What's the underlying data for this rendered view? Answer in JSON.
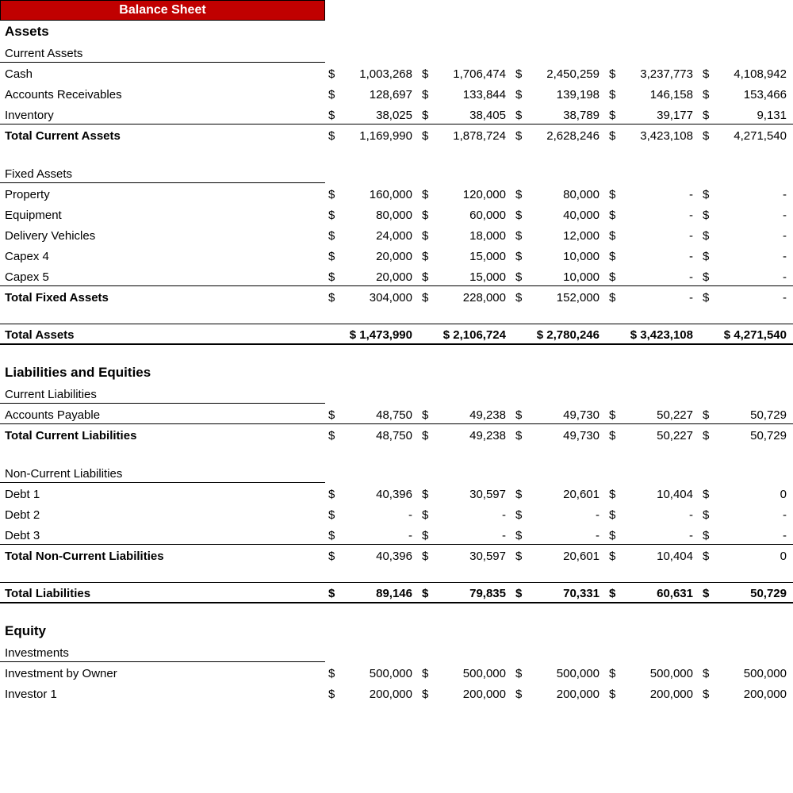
{
  "title": "Balance Sheet",
  "currency_symbol": "$",
  "colors": {
    "title_bg": "#c00000",
    "title_fg": "#ffffff",
    "text": "#000000",
    "bg": "#ffffff",
    "border": "#000000"
  },
  "periods": 5,
  "rows": [
    {
      "type": "section",
      "label": "Assets"
    },
    {
      "type": "subhead",
      "label": "Current Assets",
      "underline": true
    },
    {
      "type": "line",
      "label": "Cash",
      "values": [
        "1,003,268",
        "1,706,474",
        "2,450,259",
        "3,237,773",
        "4,108,942"
      ]
    },
    {
      "type": "line",
      "label": "Accounts Receivables",
      "values": [
        "128,697",
        "133,844",
        "139,198",
        "146,158",
        "153,466"
      ]
    },
    {
      "type": "line",
      "label": "Inventory",
      "values": [
        "38,025",
        "38,405",
        "38,789",
        "39,177",
        "9,131"
      ]
    },
    {
      "type": "total",
      "label": "Total Current Assets",
      "values": [
        "1,169,990",
        "1,878,724",
        "2,628,246",
        "3,423,108",
        "4,271,540"
      ]
    },
    {
      "type": "blank"
    },
    {
      "type": "subhead",
      "label": "Fixed Assets",
      "underline": true
    },
    {
      "type": "line",
      "label": "Property",
      "values": [
        "160,000",
        "120,000",
        "80,000",
        "-",
        "-"
      ]
    },
    {
      "type": "line",
      "label": "Equipment",
      "values": [
        "80,000",
        "60,000",
        "40,000",
        "-",
        "-"
      ]
    },
    {
      "type": "line",
      "label": "Delivery Vehicles",
      "values": [
        "24,000",
        "18,000",
        "12,000",
        "-",
        "-"
      ]
    },
    {
      "type": "line",
      "label": "Capex 4",
      "values": [
        "20,000",
        "15,000",
        "10,000",
        "-",
        "-"
      ]
    },
    {
      "type": "line",
      "label": "Capex 5",
      "values": [
        "20,000",
        "15,000",
        "10,000",
        "-",
        "-"
      ]
    },
    {
      "type": "total",
      "label": "Total Fixed Assets",
      "values": [
        "304,000",
        "228,000",
        "152,000",
        "-",
        "-"
      ]
    },
    {
      "type": "blank"
    },
    {
      "type": "major",
      "label": "Total Assets",
      "values": [
        "1,473,990",
        "2,106,724",
        "2,780,246",
        "3,423,108",
        "4,271,540"
      ],
      "tight": true
    },
    {
      "type": "blank"
    },
    {
      "type": "section",
      "label": "Liabilities and Equities"
    },
    {
      "type": "subhead",
      "label": "Current Liabilities",
      "underline": true
    },
    {
      "type": "line",
      "label": "Accounts Payable",
      "values": [
        "48,750",
        "49,238",
        "49,730",
        "50,227",
        "50,729"
      ]
    },
    {
      "type": "total",
      "label": "Total Current Liabilities",
      "values": [
        "48,750",
        "49,238",
        "49,730",
        "50,227",
        "50,729"
      ]
    },
    {
      "type": "blank"
    },
    {
      "type": "subhead",
      "label": "Non-Current Liabilities",
      "underline": true
    },
    {
      "type": "line",
      "label": "Debt 1",
      "values": [
        "40,396",
        "30,597",
        "20,601",
        "10,404",
        "0"
      ]
    },
    {
      "type": "line",
      "label": "Debt 2",
      "values": [
        "-",
        "-",
        "-",
        "-",
        "-"
      ]
    },
    {
      "type": "line",
      "label": "Debt 3",
      "values": [
        "-",
        "-",
        "-",
        "-",
        "-"
      ]
    },
    {
      "type": "total",
      "label": "Total Non-Current Liabilities",
      "values": [
        "40,396",
        "30,597",
        "20,601",
        "10,404",
        "0"
      ]
    },
    {
      "type": "blank"
    },
    {
      "type": "major",
      "label": "Total Liabilities",
      "values": [
        "89,146",
        "79,835",
        "70,331",
        "60,631",
        "50,729"
      ],
      "tight": false
    },
    {
      "type": "blank"
    },
    {
      "type": "section",
      "label": "Equity"
    },
    {
      "type": "subhead",
      "label": "Investments",
      "underline": true
    },
    {
      "type": "line",
      "label": "Investment by Owner",
      "values": [
        "500,000",
        "500,000",
        "500,000",
        "500,000",
        "500,000"
      ]
    },
    {
      "type": "line",
      "label": "Investor 1",
      "values": [
        "200,000",
        "200,000",
        "200,000",
        "200,000",
        "200,000"
      ]
    }
  ]
}
